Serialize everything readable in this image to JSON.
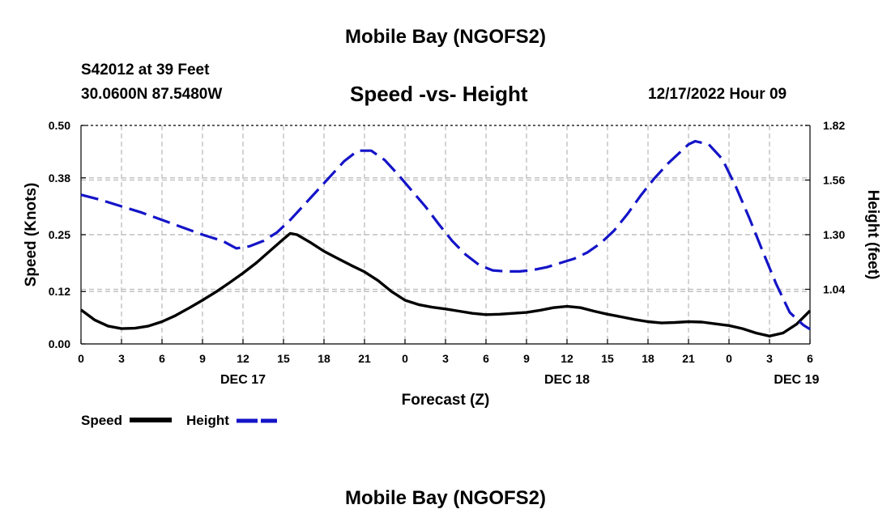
{
  "header": {
    "title": "Mobile Bay (NGOFS2)",
    "station": "S42012 at 39 Feet",
    "coords": "30.0600N  87.5480W",
    "chart_title": "Speed -vs- Height",
    "datetime": "12/17/2022 Hour 09"
  },
  "footer": {
    "title": "Mobile Bay (NGOFS2)"
  },
  "colors": {
    "speed": "#000000",
    "height": "#1414c8",
    "grid": "#bdbdbd"
  },
  "chart_data": {
    "type": "line",
    "title": "Speed -vs- Height",
    "xlabel": "Forecast (Z)",
    "ylabel": "Speed (Knots)",
    "y2label": "Height (feet)",
    "x_range_hours": [
      0,
      54
    ],
    "xticks": [
      {
        "h": 0,
        "label": "0"
      },
      {
        "h": 3,
        "label": "3"
      },
      {
        "h": 6,
        "label": "6"
      },
      {
        "h": 9,
        "label": "9"
      },
      {
        "h": 12,
        "label": "12"
      },
      {
        "h": 15,
        "label": "15"
      },
      {
        "h": 18,
        "label": "18"
      },
      {
        "h": 21,
        "label": "21"
      },
      {
        "h": 24,
        "label": "0"
      },
      {
        "h": 27,
        "label": "3"
      },
      {
        "h": 30,
        "label": "6"
      },
      {
        "h": 33,
        "label": "9"
      },
      {
        "h": 36,
        "label": "12"
      },
      {
        "h": 39,
        "label": "15"
      },
      {
        "h": 42,
        "label": "18"
      },
      {
        "h": 45,
        "label": "21"
      },
      {
        "h": 48,
        "label": "0"
      },
      {
        "h": 51,
        "label": "3"
      },
      {
        "h": 54,
        "label": "6"
      }
    ],
    "day_labels": [
      {
        "h": 12,
        "label": "DEC 17"
      },
      {
        "h": 36,
        "label": "DEC 18"
      },
      {
        "h": 53,
        "label": "DEC 19"
      }
    ],
    "ylim": [
      0,
      0.5
    ],
    "yticks": [
      "0.00",
      "0.12",
      "0.25",
      "0.38",
      "0.50"
    ],
    "y2lim": [
      0.78,
      1.82
    ],
    "y2ticks": [
      "1.04",
      "1.30",
      "1.56",
      "1.82"
    ],
    "legend": [
      {
        "name": "Speed",
        "style": "solid"
      },
      {
        "name": "Height",
        "style": "dashed"
      }
    ],
    "series": [
      {
        "name": "Speed",
        "axis": "left",
        "x": [
          0,
          1,
          2,
          3,
          4,
          5,
          6,
          7,
          8,
          9,
          10,
          11,
          12,
          13,
          14,
          15,
          15.5,
          16,
          17,
          18,
          19,
          20,
          21,
          22,
          23,
          24,
          25,
          26,
          27,
          28,
          29,
          30,
          31,
          32,
          33,
          34,
          35,
          36,
          37,
          38,
          39,
          40,
          41,
          42,
          43,
          44,
          45,
          46,
          47,
          48,
          49,
          50,
          51,
          52,
          53,
          54
        ],
        "values": [
          0.078,
          0.055,
          0.041,
          0.035,
          0.036,
          0.041,
          0.051,
          0.065,
          0.082,
          0.1,
          0.119,
          0.14,
          0.162,
          0.186,
          0.213,
          0.24,
          0.253,
          0.25,
          0.232,
          0.212,
          0.196,
          0.18,
          0.165,
          0.145,
          0.12,
          0.1,
          0.09,
          0.084,
          0.08,
          0.075,
          0.07,
          0.067,
          0.068,
          0.07,
          0.072,
          0.077,
          0.083,
          0.086,
          0.083,
          0.075,
          0.068,
          0.062,
          0.056,
          0.051,
          0.048,
          0.049,
          0.051,
          0.05,
          0.046,
          0.042,
          0.035,
          0.025,
          0.018,
          0.025,
          0.045,
          0.076
        ]
      },
      {
        "name": "Height",
        "axis": "right",
        "x": [
          0,
          1.5,
          3,
          4.5,
          6,
          7.5,
          9,
          10.5,
          11.5,
          12.5,
          13.5,
          14.5,
          15.5,
          16.5,
          17.5,
          18.5,
          19.5,
          20.5,
          21.5,
          22.5,
          23.5,
          24.5,
          25.5,
          26.5,
          27.5,
          28.5,
          29.5,
          30.5,
          31.5,
          32.5,
          33.5,
          34.5,
          35.5,
          36.5,
          37.5,
          38.5,
          39.5,
          40.5,
          41.5,
          42.5,
          43.5,
          44.5,
          45,
          45.5,
          46.5,
          47.5,
          48.5,
          49.5,
          50.5,
          51.5,
          52.5,
          53.5,
          54
        ],
        "values": [
          1.49,
          1.465,
          1.435,
          1.405,
          1.37,
          1.335,
          1.3,
          1.27,
          1.235,
          1.245,
          1.27,
          1.31,
          1.37,
          1.44,
          1.51,
          1.58,
          1.65,
          1.7,
          1.7,
          1.655,
          1.585,
          1.51,
          1.435,
          1.35,
          1.27,
          1.205,
          1.155,
          1.13,
          1.125,
          1.125,
          1.132,
          1.145,
          1.165,
          1.185,
          1.215,
          1.26,
          1.32,
          1.4,
          1.49,
          1.57,
          1.64,
          1.7,
          1.73,
          1.745,
          1.73,
          1.66,
          1.53,
          1.38,
          1.22,
          1.065,
          0.93,
          0.87,
          0.85
        ]
      }
    ]
  }
}
